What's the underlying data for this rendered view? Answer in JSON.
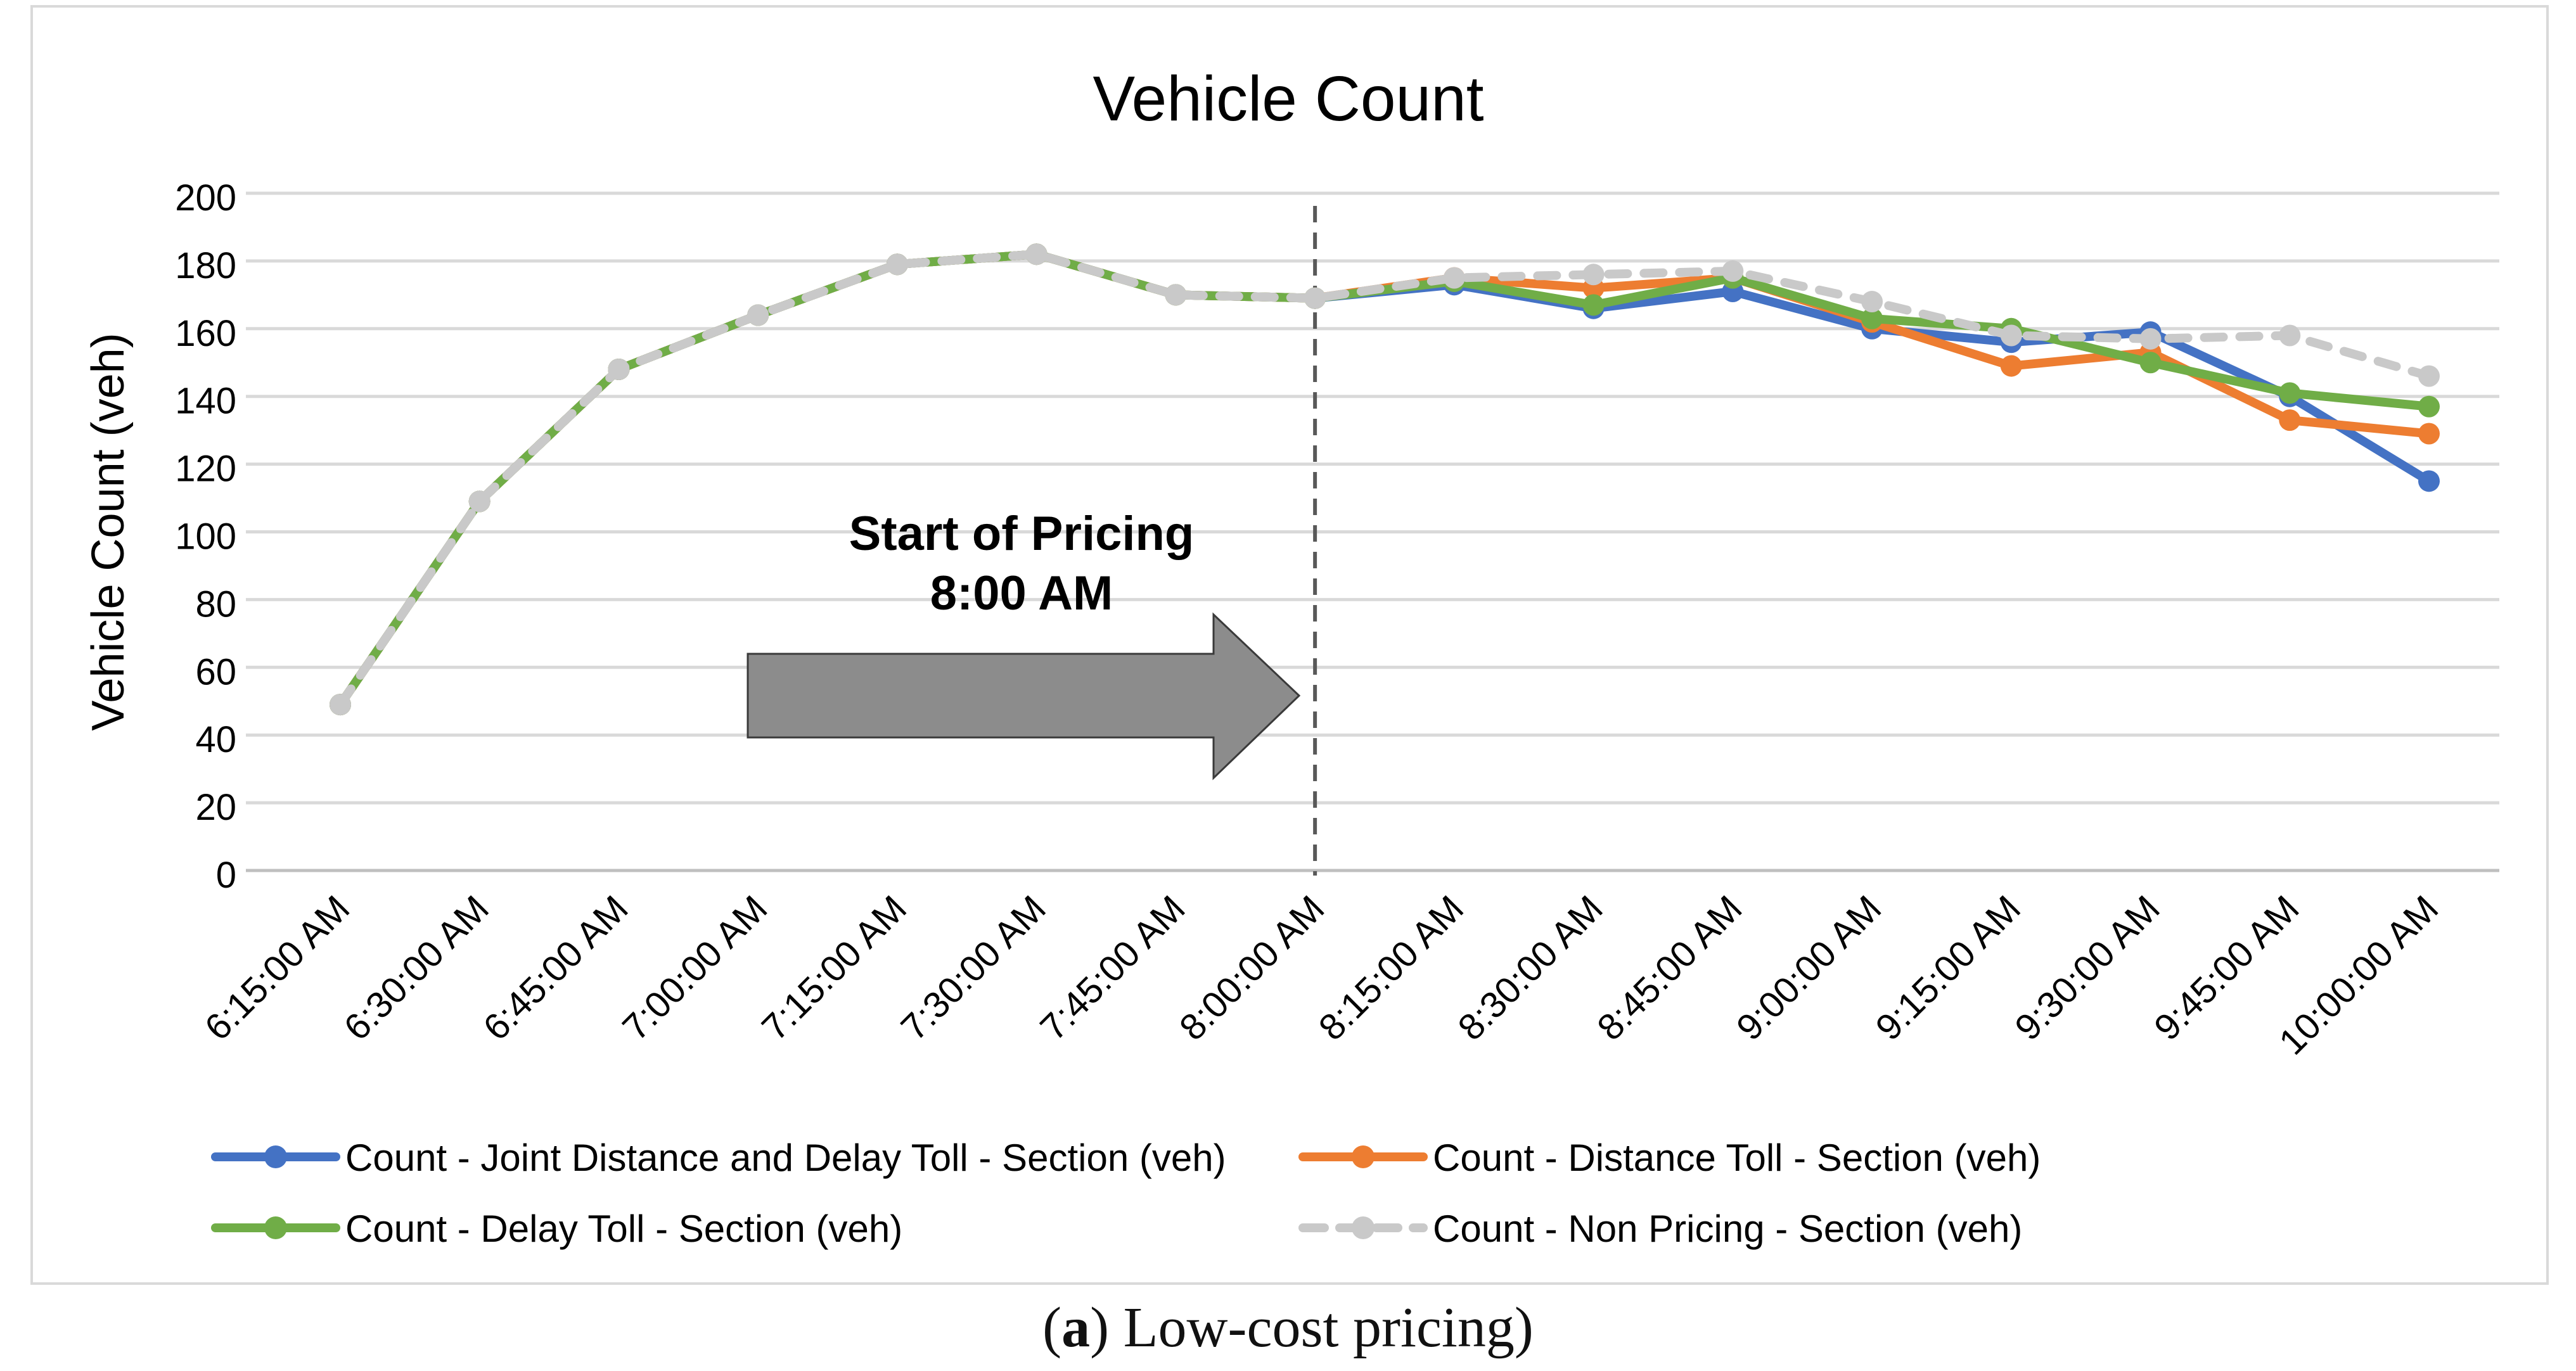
{
  "chart_data": {
    "type": "line",
    "title": "Vehicle Count",
    "xlabel": "",
    "ylabel": "Vehicle Count (veh)",
    "ylim": [
      0,
      200
    ],
    "yticks": [
      0,
      20,
      40,
      60,
      80,
      100,
      120,
      140,
      160,
      180,
      200
    ],
    "grid": true,
    "legend_position": "bottom",
    "categories": [
      "6:15:00 AM",
      "6:30:00 AM",
      "6:45:00 AM",
      "7:00:00 AM",
      "7:15:00 AM",
      "7:30:00 AM",
      "7:45:00 AM",
      "8:00:00 AM",
      "8:15:00 AM",
      "8:30:00 AM",
      "8:45:00 AM",
      "9:00:00 AM",
      "9:15:00 AM",
      "9:30:00 AM",
      "9:45:00 AM",
      "10:00:00 AM"
    ],
    "series": [
      {
        "name": "Count - Joint Distance and Delay Toll - Section (veh)",
        "color": "#4472c4",
        "dashed": false,
        "values": [
          49,
          109,
          148,
          164,
          179,
          182,
          170,
          169,
          173,
          166,
          171,
          160,
          156,
          159,
          140,
          115
        ]
      },
      {
        "name": "Count - Distance Toll - Section (veh)",
        "color": "#ed7d31",
        "dashed": false,
        "values": [
          49,
          109,
          148,
          164,
          179,
          182,
          170,
          169,
          175,
          172,
          175,
          162,
          149,
          153,
          133,
          129
        ]
      },
      {
        "name": "Count - Delay Toll - Section (veh)",
        "color": "#70ad47",
        "dashed": false,
        "values": [
          49,
          109,
          148,
          164,
          179,
          182,
          170,
          169,
          174,
          167,
          175,
          163,
          160,
          150,
          141,
          137
        ]
      },
      {
        "name": "Count - Non Pricing - Section (veh)",
        "color": "#c9c9c9",
        "dashed": true,
        "values": [
          49,
          109,
          148,
          164,
          179,
          182,
          170,
          169,
          175,
          176,
          177,
          168,
          158,
          157,
          158,
          146
        ]
      }
    ],
    "annotation": {
      "line1": "Start of Pricing",
      "line2": "8:00 AM",
      "at": "8:00:00 AM"
    }
  },
  "caption": {
    "label": "a",
    "text": " Low-cost pricing"
  }
}
